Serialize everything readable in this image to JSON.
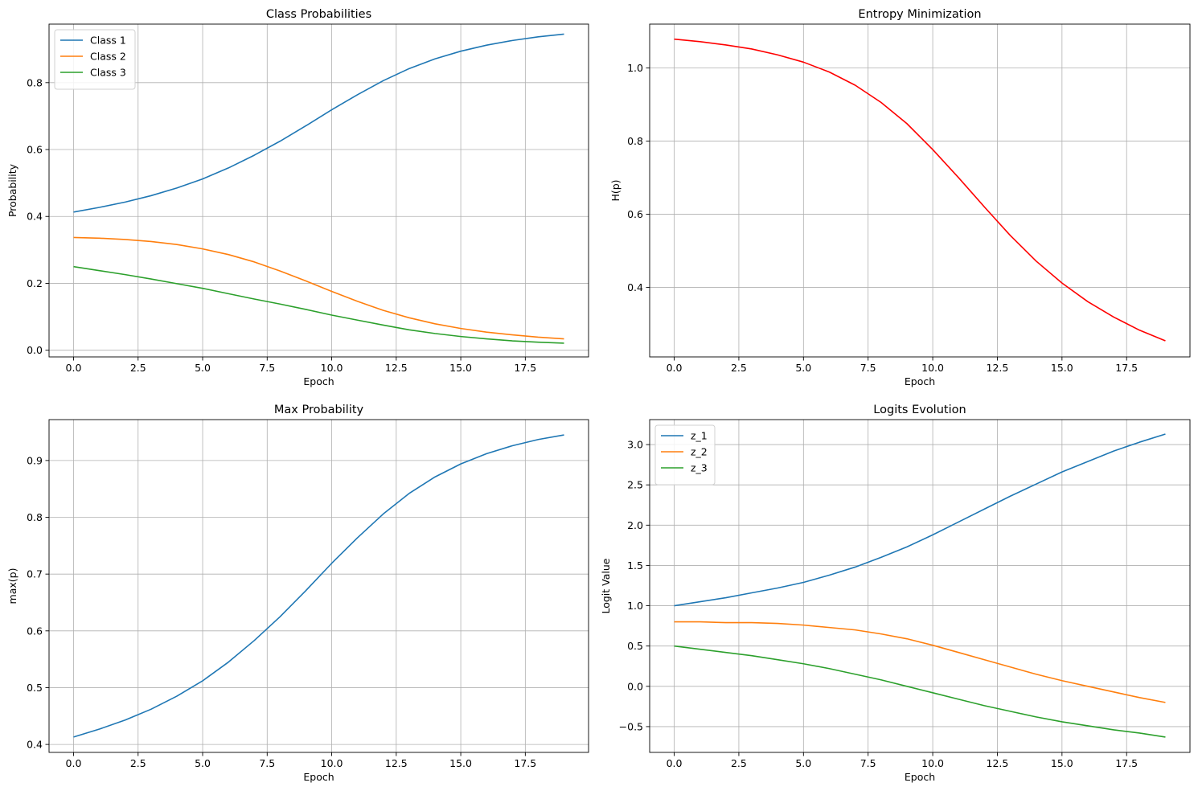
{
  "chart_data": [
    {
      "type": "line",
      "title": "Class Probabilities",
      "xlabel": "Epoch",
      "ylabel": "Probability",
      "xlim": [
        -0.95,
        19.95
      ],
      "ylim": [
        -0.02,
        0.975
      ],
      "xticks": [
        0.0,
        2.5,
        5.0,
        7.5,
        10.0,
        12.5,
        15.0,
        17.5
      ],
      "xtick_labels": [
        "0.0",
        "2.5",
        "5.0",
        "7.5",
        "10.0",
        "12.5",
        "15.0",
        "17.5"
      ],
      "yticks": [
        0.0,
        0.2,
        0.4,
        0.6,
        0.8
      ],
      "ytick_labels": [
        "0.0",
        "0.2",
        "0.4",
        "0.6",
        "0.8"
      ],
      "grid": true,
      "legend": "upper-left",
      "x": [
        0,
        1,
        2,
        3,
        4,
        5,
        6,
        7,
        8,
        9,
        10,
        11,
        12,
        13,
        14,
        15,
        16,
        17,
        18,
        19
      ],
      "series": [
        {
          "name": "Class 1",
          "color": "#1f77b4",
          "values": [
            0.413,
            0.427,
            0.443,
            0.462,
            0.485,
            0.512,
            0.545,
            0.583,
            0.625,
            0.671,
            0.719,
            0.764,
            0.806,
            0.842,
            0.871,
            0.894,
            0.912,
            0.926,
            0.937,
            0.945
          ]
        },
        {
          "name": "Class 2",
          "color": "#ff7f0e",
          "values": [
            0.337,
            0.335,
            0.331,
            0.325,
            0.316,
            0.303,
            0.286,
            0.264,
            0.237,
            0.207,
            0.176,
            0.146,
            0.119,
            0.097,
            0.079,
            0.065,
            0.054,
            0.046,
            0.039,
            0.034
          ]
        },
        {
          "name": "Class 3",
          "color": "#2ca02c",
          "values": [
            0.25,
            0.238,
            0.226,
            0.213,
            0.199,
            0.185,
            0.169,
            0.153,
            0.138,
            0.122,
            0.105,
            0.09,
            0.075,
            0.061,
            0.05,
            0.041,
            0.034,
            0.028,
            0.024,
            0.021
          ]
        }
      ]
    },
    {
      "type": "line",
      "title": "Entropy Minimization",
      "xlabel": "Epoch",
      "ylabel": "H(p)",
      "xlim": [
        -0.95,
        19.95
      ],
      "ylim": [
        0.21,
        1.12
      ],
      "xticks": [
        0.0,
        2.5,
        5.0,
        7.5,
        10.0,
        12.5,
        15.0,
        17.5
      ],
      "xtick_labels": [
        "0.0",
        "2.5",
        "5.0",
        "7.5",
        "10.0",
        "12.5",
        "15.0",
        "17.5"
      ],
      "yticks": [
        0.4,
        0.6,
        0.8,
        1.0
      ],
      "ytick_labels": [
        "0.4",
        "0.6",
        "0.8",
        "1.0"
      ],
      "grid": true,
      "legend": "none",
      "x": [
        0,
        1,
        2,
        3,
        4,
        5,
        6,
        7,
        8,
        9,
        10,
        11,
        12,
        13,
        14,
        15,
        16,
        17,
        18,
        19
      ],
      "series": [
        {
          "name": "H(p)",
          "color": "#ff0000",
          "values": [
            1.079,
            1.072,
            1.063,
            1.052,
            1.036,
            1.016,
            0.989,
            0.953,
            0.906,
            0.848,
            0.777,
            0.7,
            0.62,
            0.542,
            0.472,
            0.412,
            0.361,
            0.319,
            0.283,
            0.254
          ]
        }
      ]
    },
    {
      "type": "line",
      "title": "Max Probability",
      "xlabel": "Epoch",
      "ylabel": "max(p)",
      "xlim": [
        -0.95,
        19.95
      ],
      "ylim": [
        0.386,
        0.972
      ],
      "xticks": [
        0.0,
        2.5,
        5.0,
        7.5,
        10.0,
        12.5,
        15.0,
        17.5
      ],
      "xtick_labels": [
        "0.0",
        "2.5",
        "5.0",
        "7.5",
        "10.0",
        "12.5",
        "15.0",
        "17.5"
      ],
      "yticks": [
        0.4,
        0.5,
        0.6,
        0.7,
        0.8,
        0.9
      ],
      "ytick_labels": [
        "0.4",
        "0.5",
        "0.6",
        "0.7",
        "0.8",
        "0.9"
      ],
      "grid": true,
      "legend": "none",
      "x": [
        0,
        1,
        2,
        3,
        4,
        5,
        6,
        7,
        8,
        9,
        10,
        11,
        12,
        13,
        14,
        15,
        16,
        17,
        18,
        19
      ],
      "series": [
        {
          "name": "max(p)",
          "color": "#1f77b4",
          "values": [
            0.413,
            0.427,
            0.443,
            0.462,
            0.485,
            0.512,
            0.545,
            0.583,
            0.625,
            0.671,
            0.719,
            0.764,
            0.806,
            0.842,
            0.871,
            0.894,
            0.912,
            0.926,
            0.937,
            0.945
          ]
        }
      ]
    },
    {
      "type": "line",
      "title": "Logits Evolution",
      "xlabel": "Epoch",
      "ylabel": "Logit Value",
      "xlim": [
        -0.95,
        19.95
      ],
      "ylim": [
        -0.82,
        3.31
      ],
      "xticks": [
        0.0,
        2.5,
        5.0,
        7.5,
        10.0,
        12.5,
        15.0,
        17.5
      ],
      "xtick_labels": [
        "0.0",
        "2.5",
        "5.0",
        "7.5",
        "10.0",
        "12.5",
        "15.0",
        "17.5"
      ],
      "yticks": [
        -0.5,
        0.0,
        0.5,
        1.0,
        1.5,
        2.0,
        2.5,
        3.0
      ],
      "ytick_labels": [
        "−0.5",
        "0.0",
        "0.5",
        "1.0",
        "1.5",
        "2.0",
        "2.5",
        "3.0"
      ],
      "grid": true,
      "legend": "upper-left",
      "x": [
        0,
        1,
        2,
        3,
        4,
        5,
        6,
        7,
        8,
        9,
        10,
        11,
        12,
        13,
        14,
        15,
        16,
        17,
        18,
        19
      ],
      "series": [
        {
          "name": "z_1",
          "color": "#1f77b4",
          "values": [
            1.0,
            1.05,
            1.1,
            1.16,
            1.22,
            1.29,
            1.38,
            1.48,
            1.6,
            1.73,
            1.88,
            2.04,
            2.2,
            2.36,
            2.51,
            2.66,
            2.79,
            2.92,
            3.03,
            3.13
          ]
        },
        {
          "name": "z_2",
          "color": "#ff7f0e",
          "values": [
            0.8,
            0.8,
            0.79,
            0.79,
            0.78,
            0.76,
            0.73,
            0.7,
            0.65,
            0.59,
            0.51,
            0.42,
            0.33,
            0.24,
            0.15,
            0.07,
            0.0,
            -0.07,
            -0.14,
            -0.2
          ]
        },
        {
          "name": "z_3",
          "color": "#2ca02c",
          "values": [
            0.5,
            0.46,
            0.42,
            0.38,
            0.33,
            0.28,
            0.22,
            0.15,
            0.08,
            0.0,
            -0.08,
            -0.16,
            -0.24,
            -0.31,
            -0.38,
            -0.44,
            -0.49,
            -0.54,
            -0.58,
            -0.63
          ]
        }
      ]
    }
  ]
}
